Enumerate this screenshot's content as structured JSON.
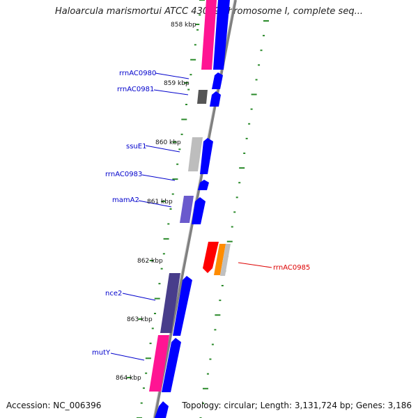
{
  "title": "Haloarcula marismortui ATCC 43049 chromosome I, complete seq...",
  "footer": {
    "accession": "Accession: NC_006396",
    "summary": "Topology: circular; Length: 3,131,724 bp; Genes: 3,186"
  },
  "ticks": [
    {
      "label": "858 kbp",
      "position_kbp": 858
    },
    {
      "label": "859 kbp",
      "position_kbp": 859
    },
    {
      "label": "860 kbp",
      "position_kbp": 860
    },
    {
      "label": "861 kbp",
      "position_kbp": 861
    },
    {
      "label": "862 kbp",
      "position_kbp": 862
    },
    {
      "label": "863 kbp",
      "position_kbp": 863
    },
    {
      "label": "864 kbp",
      "position_kbp": 864
    }
  ],
  "genes": [
    {
      "label": "rrnAC0980",
      "color": "#0000cc"
    },
    {
      "label": "rrnAC0981",
      "color": "#0000cc"
    },
    {
      "label": "ssuE1",
      "color": "#0000cc"
    },
    {
      "label": "rrnAC0983",
      "color": "#0000cc"
    },
    {
      "label": "mamA2",
      "color": "#0000cc"
    },
    {
      "label": "rrnAC0985",
      "color": "#dd0000"
    },
    {
      "label": "nce2",
      "color": "#0000cc"
    },
    {
      "label": "mutY",
      "color": "#0000cc"
    }
  ],
  "colors": {
    "backbone": "#808080",
    "cds_strand": "#0000ff",
    "gc_skew_dots": "#2a8a2a",
    "highlight": "#ff2a94"
  }
}
